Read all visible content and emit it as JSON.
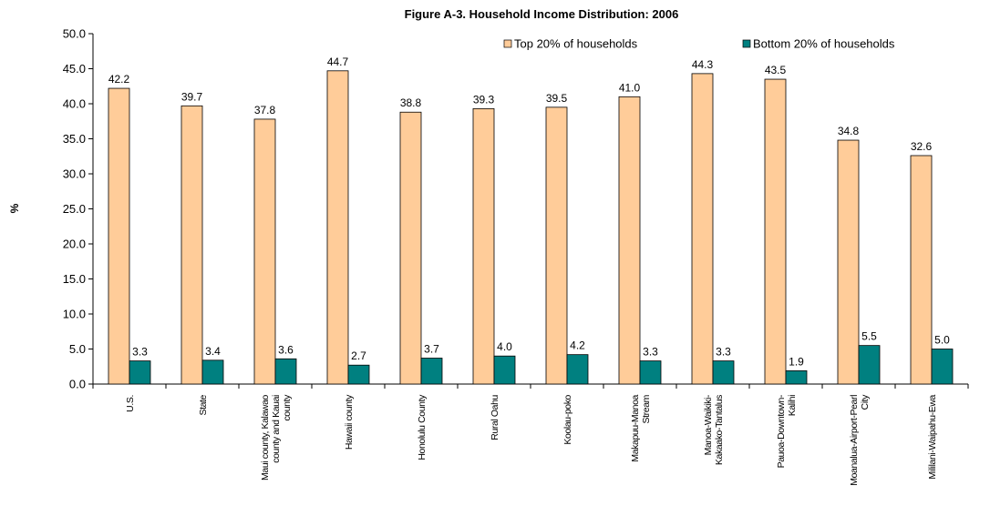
{
  "chart_data": {
    "type": "bar",
    "title": "Figure A-3. Household Income Distribution: 2006",
    "xlabel": "",
    "ylabel": "%",
    "ylim": [
      0,
      50
    ],
    "yticks": [
      "0.0",
      "5.0",
      "10.0",
      "15.0",
      "20.0",
      "25.0",
      "30.0",
      "35.0",
      "40.0",
      "45.0",
      "50.0"
    ],
    "legend_position": "top-right",
    "categories": [
      [
        "U.S."
      ],
      [
        "State"
      ],
      [
        "Maui county, Kalawao",
        "county and Kauai",
        "county"
      ],
      [
        "Hawaii county"
      ],
      [
        "Honolulu County"
      ],
      [
        "Rural Oahu"
      ],
      [
        "Koolau-poko"
      ],
      [
        "Makapuu-Manoa",
        "Stream"
      ],
      [
        "Manoa-Waikiki-",
        "Kakaako-Tantalus"
      ],
      [
        "Pauoa-Downtown-",
        "Kalihi"
      ],
      [
        "Moanalua-Airport-Pearl",
        "City"
      ],
      [
        "Mililani-Waipahu-Ewa"
      ]
    ],
    "series": [
      {
        "name": "Top 20% of households",
        "color": "#FFCC99",
        "values": [
          42.2,
          39.7,
          37.8,
          44.7,
          38.8,
          39.3,
          39.5,
          41.0,
          44.3,
          43.5,
          34.8,
          32.6
        ],
        "labels": [
          "42.2",
          "39.7",
          "37.8",
          "44.7",
          "38.8",
          "39.3",
          "39.5",
          "41.0",
          "44.3",
          "43.5",
          "34.8",
          "32.6"
        ]
      },
      {
        "name": "Bottom 20% of households",
        "color": "#008080",
        "values": [
          3.3,
          3.4,
          3.6,
          2.7,
          3.7,
          4.0,
          4.2,
          3.3,
          3.3,
          1.9,
          5.5,
          5.0
        ],
        "labels": [
          "3.3",
          "3.4",
          "3.6",
          "2.7",
          "3.7",
          "4.0",
          "4.2",
          "3.3",
          "3.3",
          "1.9",
          "5.5",
          "5.0"
        ]
      }
    ]
  }
}
